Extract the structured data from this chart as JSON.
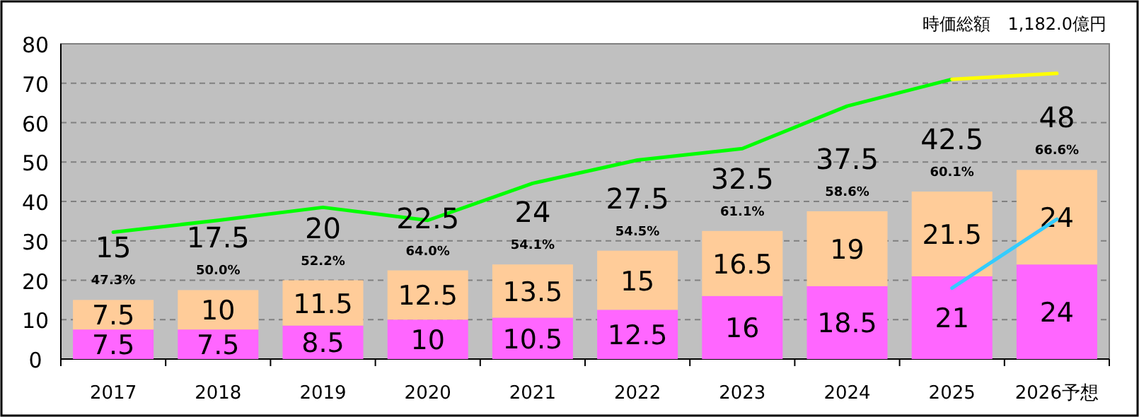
{
  "chart_data": {
    "type": "bar",
    "stacked": true,
    "categories": [
      "2017",
      "2018",
      "2019",
      "2020",
      "2021",
      "2022",
      "2023",
      "2024",
      "2025",
      "2026予想"
    ],
    "series": [
      {
        "color": "#ff66ff",
        "values": [
          7.5,
          7.5,
          8.5,
          10,
          10.5,
          12.5,
          16,
          18.5,
          21,
          24
        ],
        "value_labels": [
          "7.5",
          "7.5",
          "8.5",
          "10",
          "10.5",
          "12.5",
          "16",
          "18.5",
          "21",
          "24"
        ]
      },
      {
        "color": "#ffcc99",
        "values": [
          7.5,
          10,
          11.5,
          12.5,
          13.5,
          15,
          16.5,
          19,
          21.5,
          24
        ],
        "value_labels": [
          "7.5",
          "10",
          "11.5",
          "12.5",
          "13.5",
          "15",
          "16.5",
          "19",
          "21.5",
          "24"
        ]
      },
      {
        "type": "line",
        "color": "#00ff00",
        "values": [
          32.2,
          35.2,
          38.5,
          35.2,
          44.6,
          50.5,
          53.4,
          64.2,
          71.0,
          null
        ]
      },
      {
        "type": "line",
        "color": "#ffff00",
        "values": [
          null,
          null,
          null,
          null,
          null,
          null,
          null,
          null,
          71.0,
          72.5
        ]
      },
      {
        "type": "line",
        "color": "#33ccff",
        "values": [
          null,
          null,
          null,
          null,
          null,
          null,
          null,
          null,
          18,
          35.5
        ]
      }
    ],
    "totals": [
      "15",
      "17.5",
      "20",
      "22.5",
      "24",
      "27.5",
      "32.5",
      "37.5",
      "42.5",
      "48"
    ],
    "annotations": [
      "時価総額　1,182.0億円",
      "47.3%",
      "50.0%",
      "52.2%",
      "64.0%",
      "54.1%",
      "54.5%",
      "61.1%",
      "58.6%",
      "60.1%",
      "66.6%"
    ],
    "ylim": [
      0,
      80
    ],
    "yticks": [
      0,
      10,
      20,
      30,
      40,
      50,
      60,
      70,
      80
    ],
    "grid": "y"
  }
}
